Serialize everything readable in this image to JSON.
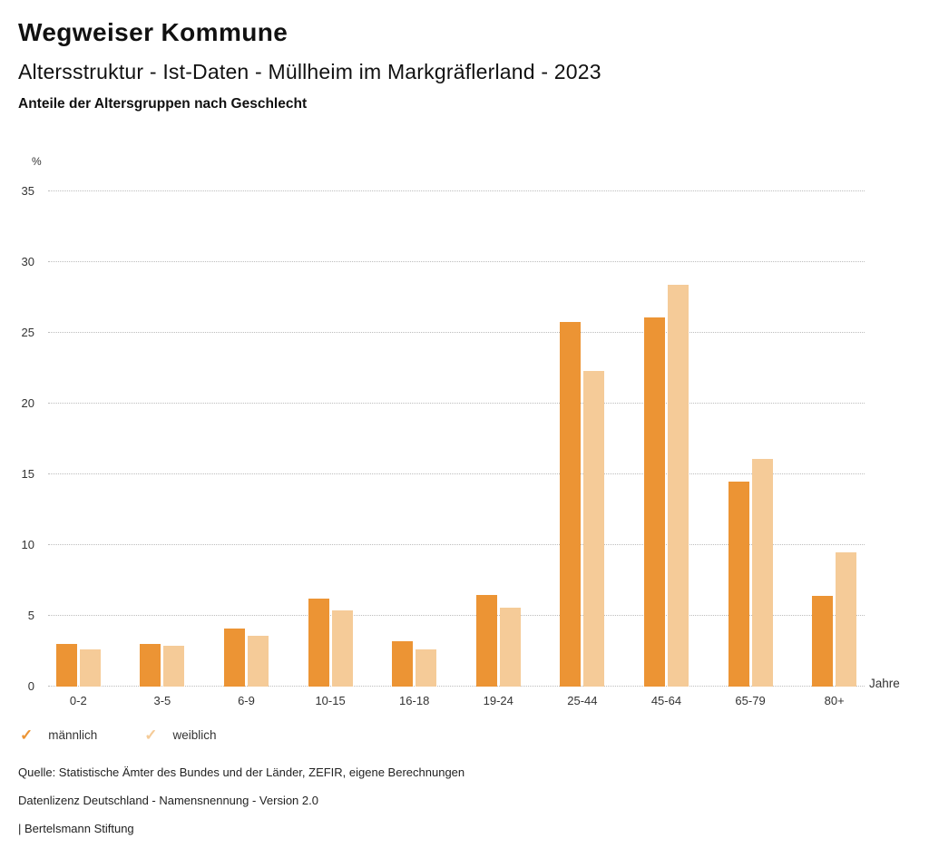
{
  "header": {
    "title": "Wegweiser Kommune",
    "subtitle": "Altersstruktur - Ist-Daten - Müllheim im Markgräflerland - 2023",
    "chart_label": "Anteile der Altersgruppen nach Geschlecht"
  },
  "chart_data": {
    "type": "bar",
    "title": "Anteile der Altersgruppen nach Geschlecht",
    "categories": [
      "0-2",
      "3-5",
      "6-9",
      "10-15",
      "16-18",
      "19-24",
      "25-44",
      "45-64",
      "65-79",
      "80+"
    ],
    "series": [
      {
        "name": "männlich",
        "color": "#EC9434",
        "values": [
          3.0,
          3.0,
          4.1,
          6.2,
          3.2,
          6.5,
          25.8,
          26.1,
          14.5,
          6.4
        ]
      },
      {
        "name": "weiblich",
        "color": "#F5CB98",
        "values": [
          2.6,
          2.9,
          3.6,
          5.4,
          2.6,
          5.6,
          22.3,
          28.4,
          16.1,
          9.5
        ]
      }
    ],
    "xlabel": "Jahre",
    "ylabel": "%",
    "ylim": [
      0,
      35
    ],
    "yticks": [
      0,
      5,
      10,
      15,
      20,
      25,
      30,
      35
    ],
    "grid": true,
    "legend_position": "bottom",
    "legend_check_glyph": "✓"
  },
  "footer": {
    "source": "Quelle: Statistische Ämter des Bundes und der Länder, ZEFIR, eigene Berechnungen",
    "license": "Datenlizenz Deutschland - Namensnennung - Version 2.0",
    "attribution": "| Bertelsmann Stiftung"
  }
}
